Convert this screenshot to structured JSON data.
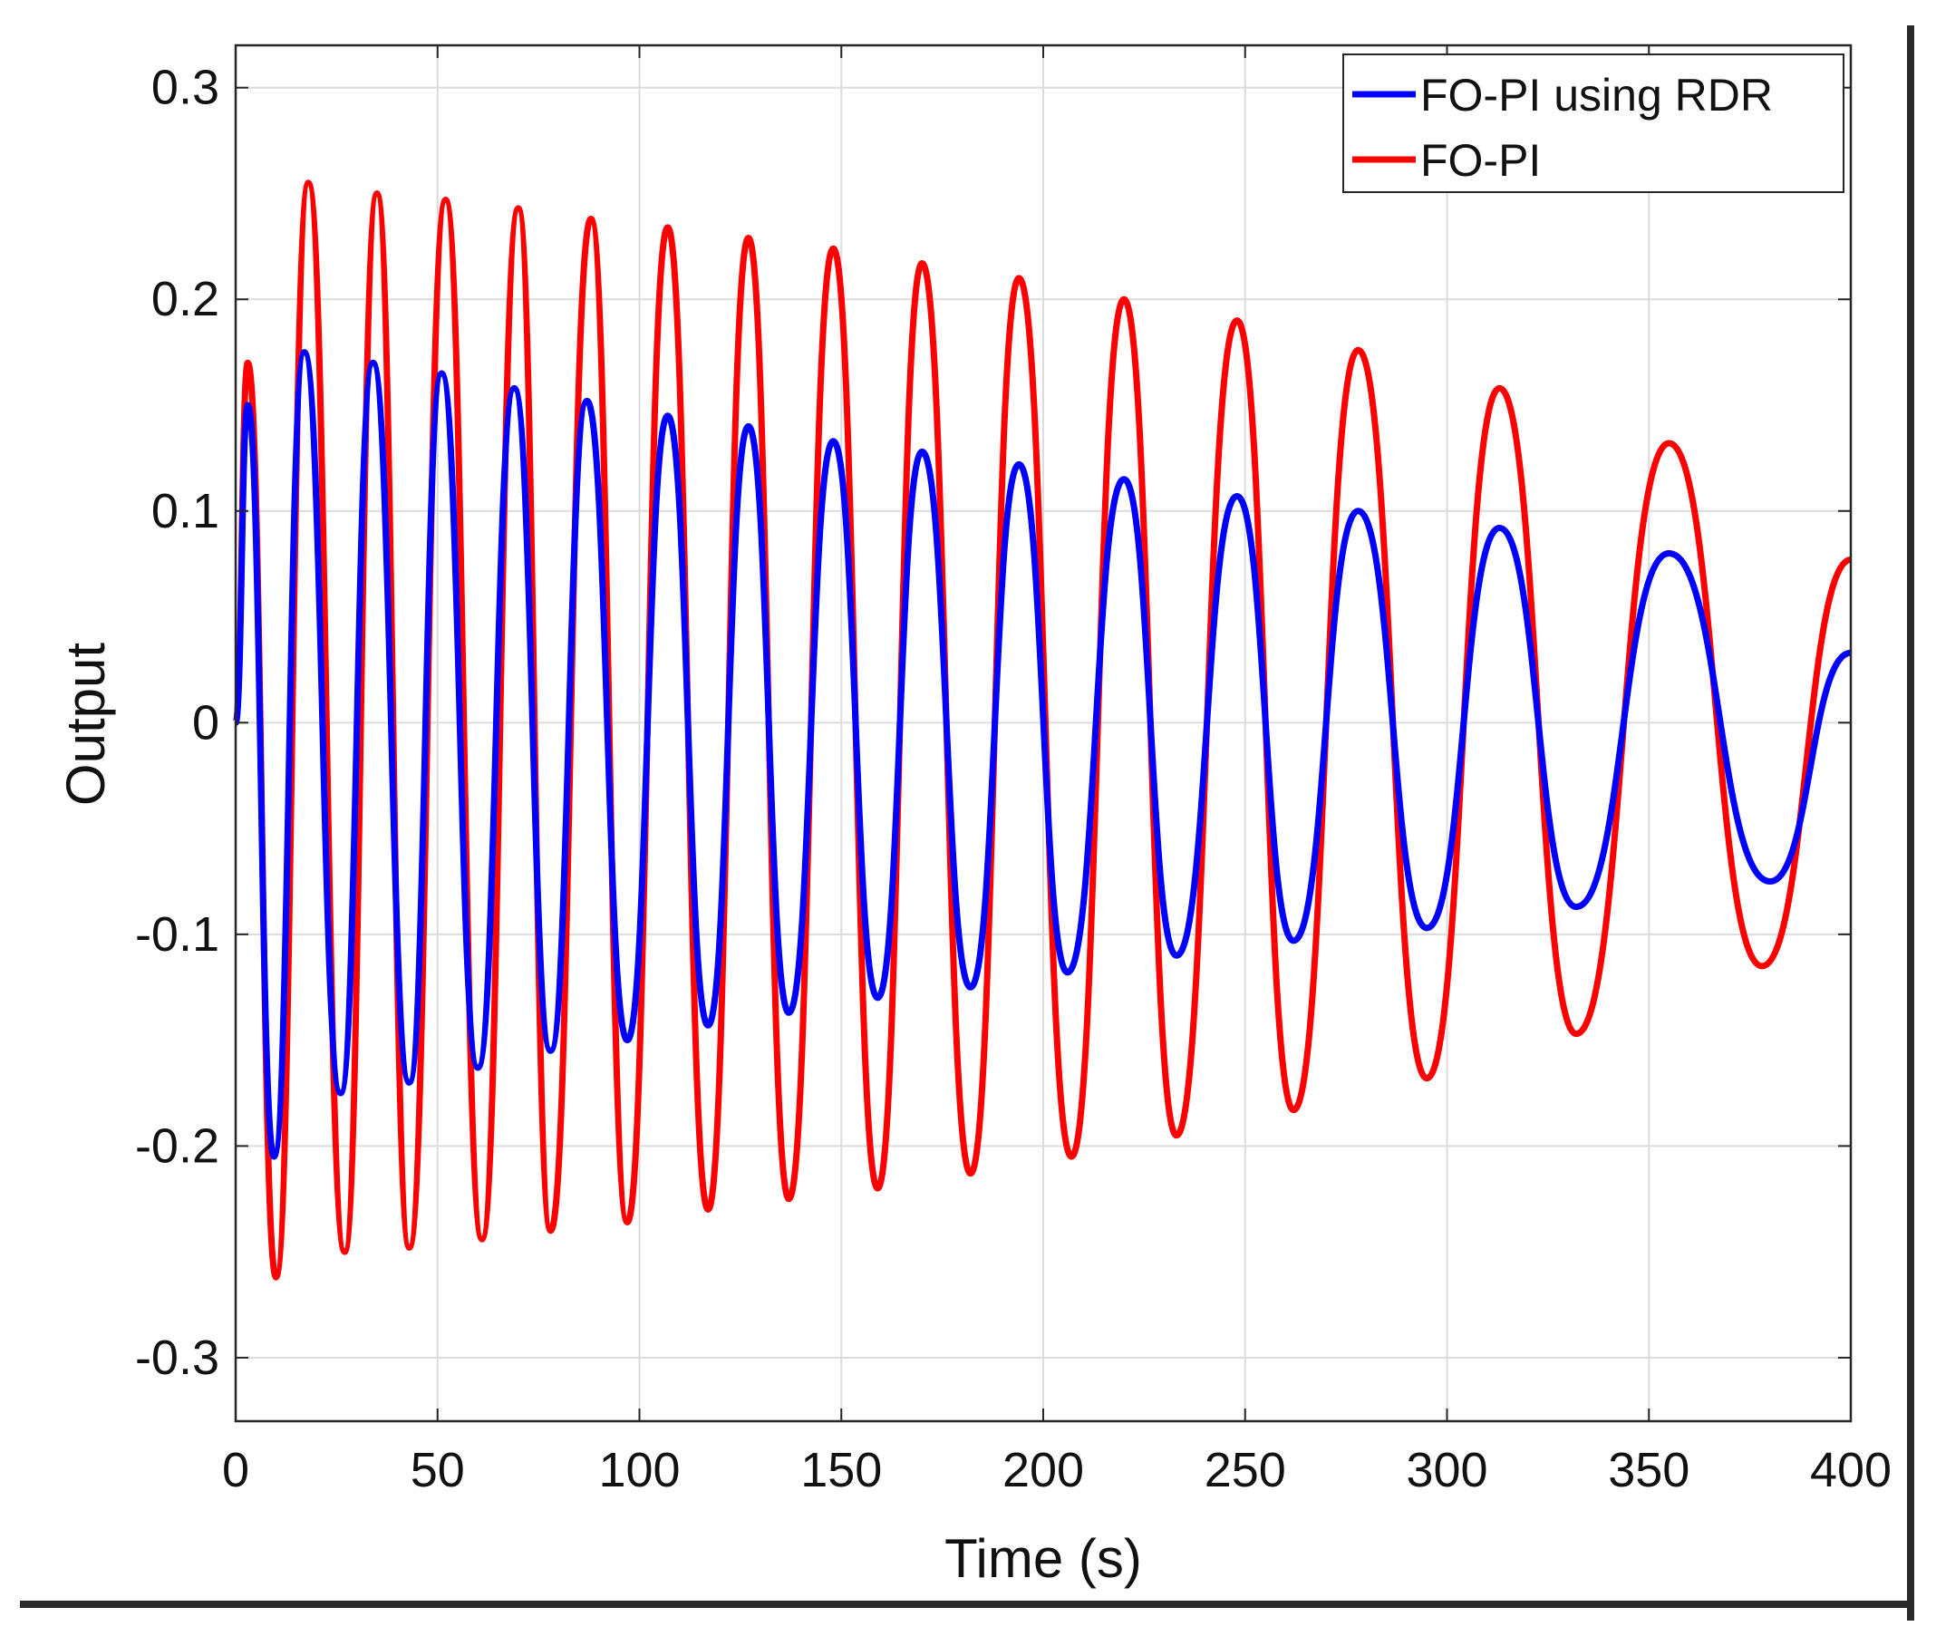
{
  "chart_data": {
    "type": "line",
    "title": "",
    "xlabel": "Time (s)",
    "ylabel": "Output",
    "xlim": [
      0,
      400
    ],
    "ylim": [
      -0.33,
      0.32
    ],
    "grid": true,
    "legend_position": "top-right",
    "xticks": [
      0,
      50,
      100,
      150,
      200,
      250,
      300,
      350,
      400
    ],
    "xtick_labels": [
      "0",
      "50",
      "100",
      "150",
      "200",
      "250",
      "300",
      "350",
      "400"
    ],
    "yticks": [
      0.3,
      0.2,
      0.1,
      0,
      -0.1,
      -0.2,
      -0.3
    ],
    "ytick_labels": [
      "0.3",
      "0.2",
      "0.1",
      "0",
      "-0.1",
      "-0.2",
      "-0.3"
    ],
    "series": [
      {
        "name": "FO-PI using RDR",
        "color": "#0000ff",
        "x": [
          0,
          3,
          9.5,
          17,
          26,
          34,
          43,
          51,
          60,
          69,
          78,
          87,
          97,
          107,
          117,
          127,
          137,
          148,
          159,
          170,
          182,
          194,
          206,
          220,
          233,
          248,
          262,
          278,
          295,
          313,
          332,
          355,
          380,
          400
        ],
        "y": [
          0.0,
          0.15,
          -0.205,
          0.175,
          -0.175,
          0.17,
          -0.17,
          0.165,
          -0.163,
          0.158,
          -0.155,
          0.152,
          -0.15,
          0.145,
          -0.143,
          0.14,
          -0.137,
          0.133,
          -0.13,
          0.128,
          -0.125,
          0.122,
          -0.118,
          0.115,
          -0.11,
          0.107,
          -0.103,
          0.1,
          -0.097,
          0.092,
          -0.087,
          0.08,
          -0.075,
          0.033
        ]
      },
      {
        "name": "FO-PI",
        "color": "#ff0000",
        "x": [
          0,
          3,
          10,
          18,
          27,
          35,
          43,
          52,
          61,
          70,
          78,
          88,
          97,
          107,
          117,
          127,
          137,
          148,
          159,
          170,
          182,
          194,
          207,
          220,
          233,
          248,
          262,
          278,
          295,
          313,
          332,
          355,
          378,
          400
        ],
        "y": [
          0.0,
          0.17,
          -0.262,
          0.255,
          -0.25,
          0.25,
          -0.248,
          0.247,
          -0.244,
          0.243,
          -0.24,
          0.238,
          -0.236,
          0.234,
          -0.23,
          0.229,
          -0.225,
          0.224,
          -0.22,
          0.217,
          -0.213,
          0.21,
          -0.205,
          0.2,
          -0.195,
          0.19,
          -0.183,
          0.176,
          -0.168,
          0.158,
          -0.147,
          0.132,
          -0.115,
          0.077
        ]
      }
    ]
  }
}
